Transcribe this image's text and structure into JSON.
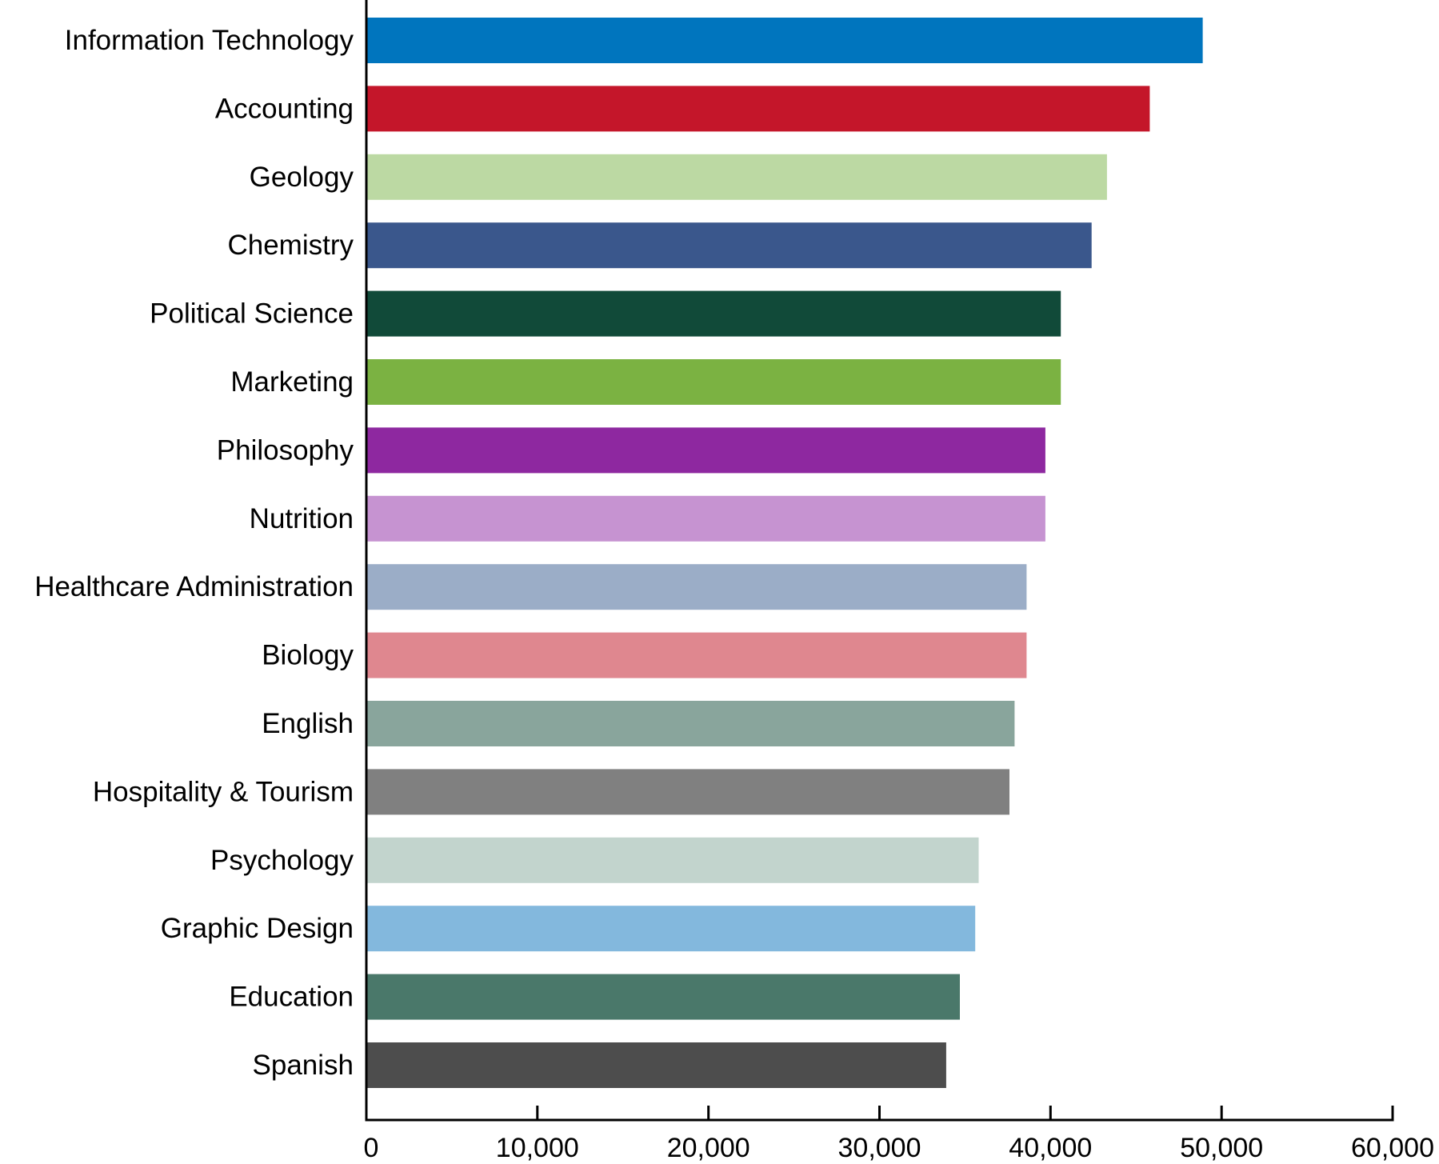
{
  "chart_data": {
    "type": "bar",
    "orientation": "horizontal",
    "title": "",
    "xlabel": "",
    "ylabel": "",
    "xlim": [
      0,
      60000
    ],
    "x_ticks": [
      0,
      10000,
      20000,
      30000,
      40000,
      50000,
      60000
    ],
    "x_tick_labels": [
      "0",
      "10,000",
      "20,000",
      "30,000",
      "40,000",
      "50,000",
      "60,000"
    ],
    "grid": false,
    "legend": "none",
    "categories": [
      "Information Technology",
      "Accounting",
      "Geology",
      "Chemistry",
      "Political Science",
      "Marketing",
      "Philosophy",
      "Nutrition",
      "Healthcare Administration",
      "Biology",
      "English",
      "Hospitality & Tourism",
      "Psychology",
      "Graphic Design",
      "Education",
      "Spanish"
    ],
    "values": [
      48900,
      45800,
      43300,
      42400,
      40600,
      40600,
      39700,
      39700,
      38600,
      38600,
      37900,
      37600,
      35800,
      35600,
      34700,
      33900
    ],
    "colors": [
      "#0075be",
      "#c4162a",
      "#bcd9a3",
      "#3a578c",
      "#114a39",
      "#7bb242",
      "#8e28a0",
      "#c693d1",
      "#9badc7",
      "#df878f",
      "#89a59c",
      "#808080",
      "#c2d4cd",
      "#83b8dd",
      "#4a786a",
      "#4d4d4d"
    ]
  }
}
